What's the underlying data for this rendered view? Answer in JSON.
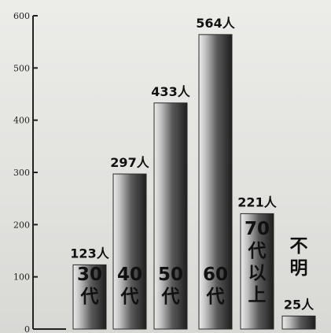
{
  "chart_data": {
    "type": "bar",
    "title": "",
    "xlabel": "",
    "ylabel": "",
    "ylim": [
      0,
      600
    ],
    "yticks": [
      0,
      100,
      200,
      300,
      400,
      500,
      600
    ],
    "grid": false,
    "legend": "none",
    "categories": [
      "30代",
      "40代",
      "50代",
      "60代",
      "70代以上",
      "不明"
    ],
    "values": [
      123,
      297,
      433,
      564,
      221,
      25
    ],
    "data_labels": [
      "123人",
      "297人",
      "433人",
      "564人",
      "221人",
      "25人"
    ],
    "bar_color": "#4d4d4d",
    "axis_color": "#222222"
  }
}
